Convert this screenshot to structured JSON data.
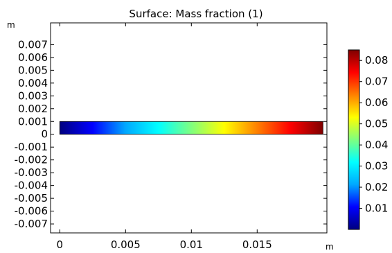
{
  "chart_data": {
    "type": "heatmap",
    "title": "Surface: Mass fraction (1)",
    "x_unit": "m",
    "y_unit": "m",
    "xlim": [
      -0.0007,
      0.0203
    ],
    "ylim": [
      -0.0077,
      0.0087
    ],
    "x_ticks": [
      0,
      0.005,
      0.01,
      0.015
    ],
    "x_tick_labels": [
      "0",
      "0.005",
      "0.01",
      "0.015"
    ],
    "y_ticks": [
      0.007,
      0.006,
      0.005,
      0.004,
      0.003,
      0.002,
      0.001,
      0,
      -0.001,
      -0.002,
      -0.003,
      -0.004,
      -0.005,
      -0.006,
      -0.007
    ],
    "y_tick_labels": [
      "0.007",
      "0.006",
      "0.005",
      "0.004",
      "0.003",
      "0.002",
      "0.001",
      "0",
      "-0.001",
      "-0.002",
      "-0.003",
      "-0.004",
      "-0.005",
      "-0.006",
      "-0.007"
    ],
    "domain": {
      "x": [
        0,
        0.02
      ],
      "y": [
        0,
        0.001
      ]
    },
    "field": {
      "x": [
        0,
        0.02
      ],
      "values": [
        0,
        0.085
      ],
      "gradient": "linear-in-x"
    },
    "colormap": "rainbow",
    "colorbar": {
      "min": 0,
      "max": 0.085,
      "ticks": [
        0.01,
        0.02,
        0.03,
        0.04,
        0.05,
        0.06,
        0.07,
        0.08
      ],
      "tick_labels": [
        "0.01",
        "0.02",
        "0.03",
        "0.04",
        "0.05",
        "0.06",
        "0.07",
        "0.08"
      ],
      "placement": "right"
    },
    "grid": false
  },
  "colors": {
    "colormap_stops": [
      "#00007f",
      "#0000ff",
      "#00a8ff",
      "#00ffff",
      "#7fff7f",
      "#ffff00",
      "#ff8000",
      "#ff0000",
      "#7f0000"
    ]
  }
}
